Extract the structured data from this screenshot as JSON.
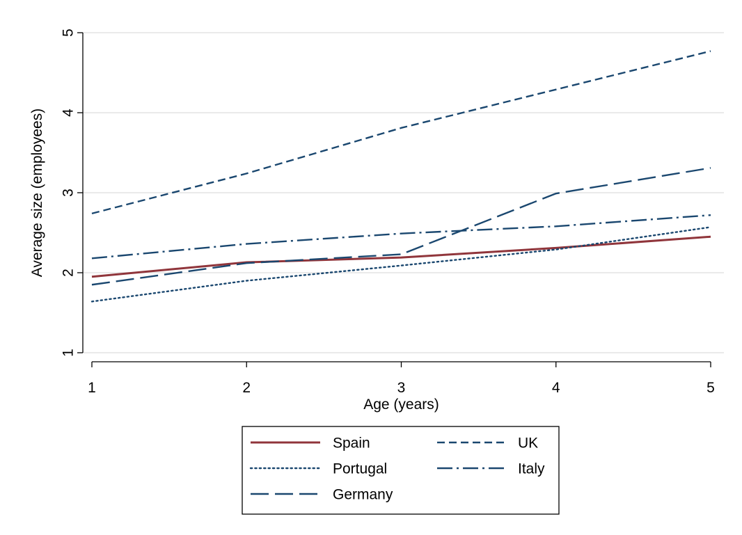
{
  "chart_data": {
    "type": "line",
    "title": "",
    "xlabel": "Age (years)",
    "ylabel": "Average size (employees)",
    "x": [
      1,
      2,
      3,
      4,
      5
    ],
    "xlim": [
      1,
      5
    ],
    "ylim": [
      1,
      5
    ],
    "xticks": [
      "1",
      "2",
      "3",
      "4",
      "5"
    ],
    "yticks": [
      "1",
      "2",
      "3",
      "4",
      "5"
    ],
    "grid": true,
    "legend_position": "bottom",
    "series": [
      {
        "name": "Spain",
        "values": [
          1.95,
          2.13,
          2.19,
          2.31,
          2.45
        ],
        "color": "#90353b",
        "style": "solid"
      },
      {
        "name": "UK",
        "values": [
          2.74,
          3.24,
          3.81,
          4.29,
          4.77
        ],
        "color": "#1a476f",
        "style": "dash"
      },
      {
        "name": "Portugal",
        "values": [
          1.64,
          1.9,
          2.09,
          2.29,
          2.57
        ],
        "color": "#1a476f",
        "style": "dot"
      },
      {
        "name": "Italy",
        "values": [
          2.18,
          2.36,
          2.49,
          2.58,
          2.72
        ],
        "color": "#1a476f",
        "style": "dashdot"
      },
      {
        "name": "Germany",
        "values": [
          1.85,
          2.12,
          2.23,
          2.99,
          3.31
        ],
        "color": "#1a476f",
        "style": "longdash"
      }
    ]
  }
}
